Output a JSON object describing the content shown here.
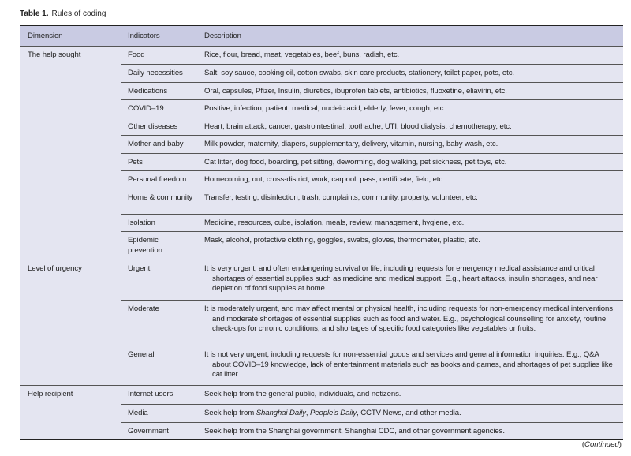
{
  "caption": {
    "label": "Table 1.",
    "title": "Rules of coding"
  },
  "headers": [
    "Dimension",
    "Indicators",
    "Description"
  ],
  "groups": [
    {
      "dimension": "The help sought",
      "rows": [
        {
          "indicator": "Food",
          "description": "Rice, flour, bread, meat, vegetables, beef, buns, radish, etc."
        },
        {
          "indicator": "Daily necessities",
          "description": "Salt, soy sauce, cooking oil, cotton swabs, skin care products, stationery, toilet paper, pots, etc."
        },
        {
          "indicator": "Medications",
          "description": "Oral, capsules, Pfizer, Insulin, diuretics, ibuprofen tablets, antibiotics, fluoxetine, eliavirin, etc."
        },
        {
          "indicator": "COVID–19",
          "description": "Positive, infection, patient, medical, nucleic acid, elderly, fever, cough, etc."
        },
        {
          "indicator": "Other diseases",
          "description": "Heart, brain attack, cancer, gastrointestinal, toothache, UTI, blood dialysis, chemotherapy, etc."
        },
        {
          "indicator": "Mother and baby",
          "description": "Milk powder, maternity, diapers, supplementary, delivery, vitamin, nursing, baby wash, etc."
        },
        {
          "indicator": "Pets",
          "description": "Cat litter, dog food, boarding, pet sitting, deworming, dog walking, pet sickness, pet toys, etc."
        },
        {
          "indicator": "Personal freedom",
          "description": "Homecoming, out, cross-district, work, carpool, pass, certificate, field, etc."
        },
        {
          "indicator": "Home & community",
          "description": "Transfer, testing, disinfection, trash, complaints, community, property, volunteer, etc."
        },
        {
          "indicator": "Isolation",
          "description": "Medicine, resources, cube, isolation, meals, review, management, hygiene, etc."
        },
        {
          "indicator": "Epidemic prevention",
          "description": "Mask, alcohol, protective clothing, goggles, swabs, gloves, thermometer, plastic, etc."
        }
      ]
    },
    {
      "dimension": "Level of urgency",
      "rows": [
        {
          "indicator": "Urgent",
          "description": "It is very urgent, and often endangering survival or life, including requests for emergency medical assistance and critical shortages of essential supplies such as medicine and medical support. E.g., heart attacks, insulin shortages, and near depletion of food supplies at home."
        },
        {
          "indicator": "Moderate",
          "description": "It is moderately urgent, and may affect mental or physical health, including requests for non-emergency medical interventions and moderate shortages of essential supplies such as food and water. E.g., psychological counselling for anxiety, routine check-ups for chronic conditions, and shortages of specific food categories like vegetables or fruits."
        },
        {
          "indicator": "General",
          "description": "It is not very urgent, including requests for non-essential goods and services and general information inquiries. E.g., Q&A about COVID–19 knowledge, lack of entertainment materials such as books and games, and shortages of pet supplies like cat litter."
        }
      ]
    },
    {
      "dimension": "Help recipient",
      "rows": [
        {
          "indicator": "Internet users",
          "description": "Seek help from the general public, individuals, and netizens."
        },
        {
          "indicator": "Media",
          "description_parts": [
            "Seek help from ",
            "Shanghai Daily",
            ", ",
            "People's Daily",
            ", CCTV News, and other media."
          ]
        },
        {
          "indicator": "Government",
          "description": "Seek help from the Shanghai government, Shanghai CDC, and other government agencies."
        }
      ]
    }
  ],
  "continued": "Continued"
}
